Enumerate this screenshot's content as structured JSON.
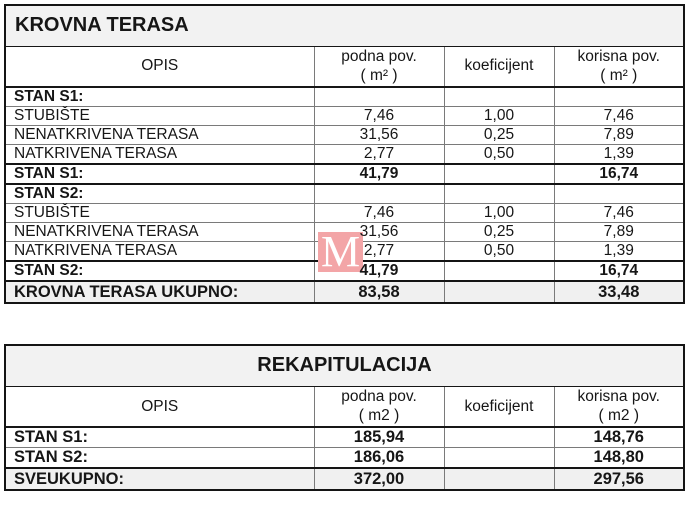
{
  "colors": {
    "title_band_bg": "#f2f2f2",
    "total_row_bg": "#f0f0f0",
    "rule": "#141414",
    "watermark_bg": "#f3a5a7",
    "watermark_fg": "#ffffff"
  },
  "watermark": {
    "letter": "M"
  },
  "krovna": {
    "title": "KROVNA TERASA",
    "columns": {
      "opis": "OPIS",
      "podna": [
        "podna pov.",
        "( m² )"
      ],
      "koef": "koeficijent",
      "korisna": [
        "korisna pov.",
        "( m² )"
      ]
    },
    "rows": [
      {
        "label": "STAN S1:",
        "podna": "",
        "koef": "",
        "korisna": "",
        "style": "section"
      },
      {
        "label": "STUBIŠTE",
        "podna": "7,46",
        "koef": "1,00",
        "korisna": "7,46",
        "style": "normal"
      },
      {
        "label": "NENATKRIVENA TERASA",
        "podna": "31,56",
        "koef": "0,25",
        "korisna": "7,89",
        "style": "normal"
      },
      {
        "label": "NATKRIVENA TERASA",
        "podna": "2,77",
        "koef": "0,50",
        "korisna": "1,39",
        "style": "normal"
      },
      {
        "label": "STAN S1:",
        "podna": "41,79",
        "koef": "",
        "korisna": "16,74",
        "style": "subtotal"
      },
      {
        "label": "STAN S2:",
        "podna": "",
        "koef": "",
        "korisna": "",
        "style": "section"
      },
      {
        "label": "STUBIŠTE",
        "podna": "7,46",
        "koef": "1,00",
        "korisna": "7,46",
        "style": "normal"
      },
      {
        "label": "NENATKRIVENA TERASA",
        "podna": "31,56",
        "koef": "0,25",
        "korisna": "7,89",
        "style": "normal"
      },
      {
        "label": "NATKRIVENA TERASA",
        "podna": "2,77",
        "koef": "0,50",
        "korisna": "1,39",
        "style": "normal"
      },
      {
        "label": "STAN S2:",
        "podna": "41,79",
        "koef": "",
        "korisna": "16,74",
        "style": "subtotal"
      },
      {
        "label": "KROVNA TERASA UKUPNO:",
        "podna": "83,58",
        "koef": "",
        "korisna": "33,48",
        "style": "total"
      }
    ]
  },
  "rekap": {
    "title": "REKAPITULACIJA",
    "columns": {
      "opis": "OPIS",
      "podna": [
        "podna pov.",
        "( m2 )"
      ],
      "koef": "koeficijent",
      "korisna": [
        "korisna pov.",
        "( m2 )"
      ]
    },
    "rows": [
      {
        "label": "STAN S1:",
        "podna": "185,94",
        "koef": "",
        "korisna": "148,76",
        "style": "bold"
      },
      {
        "label": "STAN S2:",
        "podna": "186,06",
        "koef": "",
        "korisna": "148,80",
        "style": "bold"
      },
      {
        "label": "SVEUKUPNO:",
        "podna": "372,00",
        "koef": "",
        "korisna": "297,56",
        "style": "total"
      }
    ]
  }
}
